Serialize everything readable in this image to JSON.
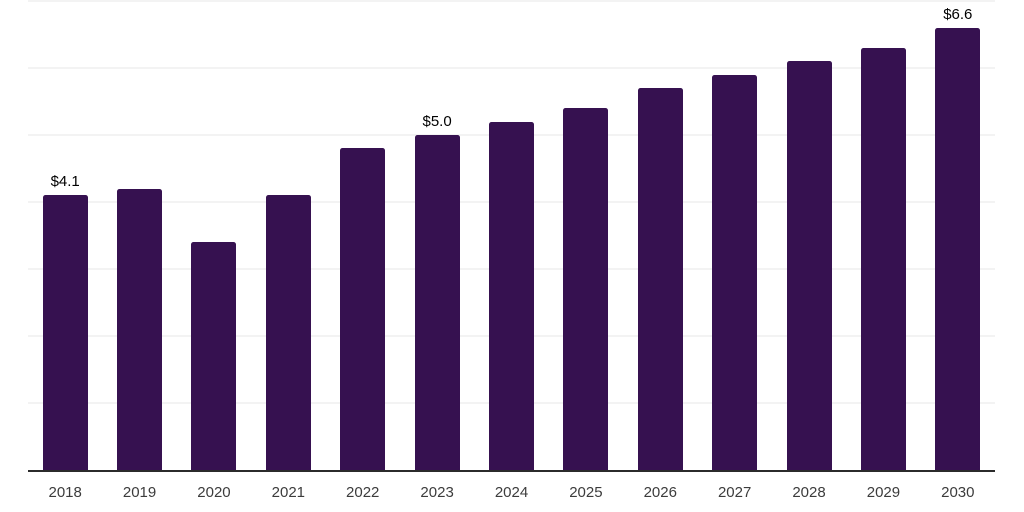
{
  "chart_data": {
    "type": "bar",
    "title": "",
    "xlabel": "",
    "ylabel": "",
    "categories": [
      "2018",
      "2019",
      "2020",
      "2021",
      "2022",
      "2023",
      "2024",
      "2025",
      "2026",
      "2027",
      "2028",
      "2029",
      "2030"
    ],
    "values": [
      4.1,
      4.2,
      3.4,
      4.1,
      4.8,
      5.0,
      5.2,
      5.4,
      5.7,
      5.9,
      6.1,
      6.3,
      6.6
    ],
    "data_labels": [
      {
        "category": "2018",
        "text": "$4.1"
      },
      {
        "category": "2023",
        "text": "$5.0"
      },
      {
        "category": "2030",
        "text": "$6.6"
      }
    ],
    "ylim": [
      0,
      7
    ],
    "grid": {
      "visible": true,
      "interval": 1
    },
    "legend": "none",
    "colors": {
      "bar": "#361150",
      "gridline": "#f3f3f3",
      "axis_line": "#2b2b2b",
      "tick_label": "#3c3c3c",
      "value_label": "#000000",
      "background": "#ffffff"
    }
  }
}
